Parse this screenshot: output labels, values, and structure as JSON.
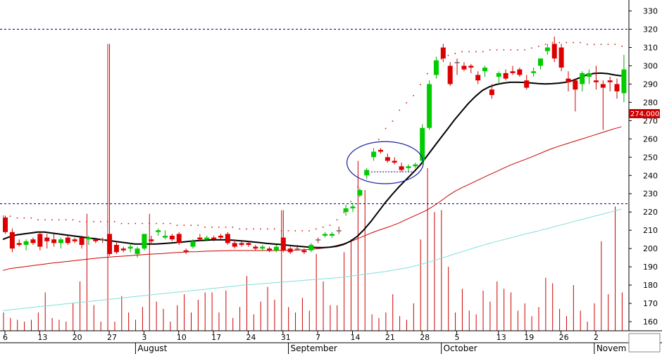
{
  "chart_data": {
    "type": "candlestick",
    "title": "",
    "xlabel": "",
    "ylabel": "",
    "ylim": [
      155,
      336
    ],
    "yticks": [
      160,
      170,
      180,
      190,
      200,
      210,
      220,
      230,
      240,
      250,
      260,
      270,
      280,
      290,
      300,
      310,
      320,
      330
    ],
    "price_tag": {
      "label": "274.000",
      "value": 274,
      "color": "#cc0000"
    },
    "resistance_lines": [
      320,
      224.5
    ],
    "x_day_labels": [
      {
        "label": "6",
        "i": 0
      },
      {
        "label": "13",
        "i": 5
      },
      {
        "label": "20",
        "i": 10
      },
      {
        "label": "27",
        "i": 15
      },
      {
        "label": "3",
        "i": 20
      },
      {
        "label": "10",
        "i": 25
      },
      {
        "label": "17",
        "i": 30
      },
      {
        "label": "24",
        "i": 35
      },
      {
        "label": "31",
        "i": 40
      },
      {
        "label": "7",
        "i": 45
      },
      {
        "label": "14",
        "i": 50
      },
      {
        "label": "21",
        "i": 55
      },
      {
        "label": "28",
        "i": 60
      },
      {
        "label": "5",
        "i": 65
      },
      {
        "label": "13",
        "i": 71
      },
      {
        "label": "19",
        "i": 75
      },
      {
        "label": "26",
        "i": 80
      },
      {
        "label": "2",
        "i": 85
      }
    ],
    "x_month_labels": [
      {
        "label": "August",
        "i": 20
      },
      {
        "label": "September",
        "i": 42
      },
      {
        "label": "October",
        "i": 64
      },
      {
        "label": "Novem",
        "i": 86
      }
    ],
    "candles": [
      [
        217,
        218,
        208,
        209
      ],
      [
        209,
        211,
        198,
        200
      ],
      [
        203,
        205,
        201,
        202
      ],
      [
        202,
        205,
        199,
        204
      ],
      [
        205,
        206,
        202,
        203
      ],
      [
        208,
        209,
        199,
        201
      ],
      [
        206,
        208,
        200,
        204
      ],
      [
        205,
        208,
        201,
        203
      ],
      [
        203,
        206,
        200,
        205
      ],
      [
        206,
        207,
        202,
        203
      ],
      [
        205,
        206,
        203,
        204
      ],
      [
        206,
        207,
        200,
        202
      ],
      [
        205,
        207,
        202,
        206
      ],
      [
        205,
        206,
        203,
        204
      ],
      [
        205,
        206,
        203,
        205
      ],
      [
        208,
        312,
        196,
        197
      ],
      [
        202,
        204,
        197,
        198
      ],
      [
        200,
        201,
        198,
        199
      ],
      [
        200,
        203,
        198,
        201
      ],
      [
        197,
        201,
        195,
        200
      ],
      [
        200,
        208,
        199,
        208
      ],
      [
        205,
        207,
        202,
        204
      ],
      [
        209,
        211,
        207,
        210
      ],
      [
        206,
        210,
        205,
        207
      ],
      [
        207,
        208,
        204,
        205
      ],
      [
        208,
        209,
        202,
        203
      ],
      [
        199,
        200,
        197,
        198
      ],
      [
        201,
        205,
        200,
        204
      ],
      [
        206,
        208,
        204,
        205
      ],
      [
        205,
        207,
        204,
        206
      ],
      [
        206,
        207,
        204,
        205
      ],
      [
        207,
        208,
        205,
        206
      ],
      [
        208,
        209,
        202,
        203
      ],
      [
        203,
        205,
        200,
        201
      ],
      [
        203,
        204,
        201,
        202
      ],
      [
        203,
        204,
        201,
        202
      ],
      [
        201,
        202,
        199,
        200
      ],
      [
        200,
        202,
        199,
        201
      ],
      [
        200,
        201,
        198,
        199
      ],
      [
        199,
        202,
        198,
        201
      ],
      [
        206,
        221,
        198,
        199
      ],
      [
        200,
        201,
        197,
        198
      ],
      [
        200,
        202,
        199,
        200
      ],
      [
        199,
        200,
        197,
        198
      ],
      [
        199,
        203,
        198,
        202
      ],
      [
        205,
        206,
        203,
        205
      ],
      [
        207,
        209,
        206,
        208
      ],
      [
        207,
        209,
        206,
        208
      ],
      [
        210,
        212,
        208,
        210
      ],
      [
        220,
        224,
        218,
        222
      ],
      [
        222,
        225,
        220,
        223
      ],
      [
        229,
        233,
        228,
        232
      ],
      [
        240,
        244,
        238,
        243
      ],
      [
        250,
        255,
        248,
        253
      ],
      [
        254,
        255,
        252,
        253
      ],
      [
        250,
        252,
        247,
        248
      ],
      [
        248,
        250,
        246,
        247
      ],
      [
        245,
        247,
        242,
        243
      ],
      [
        244,
        246,
        242,
        245
      ],
      [
        245,
        247,
        244,
        246
      ],
      [
        248,
        268,
        246,
        266
      ],
      [
        266,
        292,
        265,
        290
      ],
      [
        295,
        305,
        293,
        303
      ],
      [
        310,
        312,
        302,
        304
      ],
      [
        300,
        302,
        289,
        290
      ],
      [
        302,
        304,
        295,
        302
      ],
      [
        300,
        302,
        297,
        298
      ],
      [
        300,
        301,
        296,
        299
      ],
      [
        295,
        297,
        290,
        292
      ],
      [
        297,
        300,
        294,
        299
      ],
      [
        287,
        290,
        282,
        284
      ],
      [
        294,
        297,
        290,
        296
      ],
      [
        296,
        298,
        292,
        293
      ],
      [
        297,
        300,
        295,
        296
      ],
      [
        298,
        299,
        294,
        295
      ],
      [
        292,
        295,
        287,
        288
      ],
      [
        296,
        299,
        294,
        297
      ],
      [
        300,
        304,
        298,
        304
      ],
      [
        308,
        312,
        306,
        310
      ],
      [
        312,
        316,
        302,
        304
      ],
      [
        310,
        312,
        297,
        299
      ],
      [
        293,
        297,
        286,
        291
      ],
      [
        292,
        293,
        275,
        287
      ],
      [
        290,
        297,
        286,
        296
      ],
      [
        294,
        298,
        290,
        296
      ],
      [
        292,
        300,
        287,
        291
      ],
      [
        290,
        292,
        265,
        288
      ],
      [
        292,
        294,
        286,
        291
      ],
      [
        290,
        293,
        282,
        286
      ],
      [
        285,
        306,
        280,
        298
      ]
    ],
    "candle_color_hint": {
      "up": "#00cc00",
      "down": "#dd0000",
      "doji": "#666666"
    },
    "volume": [
      165,
      162,
      161,
      160,
      161,
      165,
      176,
      162,
      161,
      160,
      170,
      182,
      219,
      169,
      160,
      312,
      160,
      174,
      165,
      161,
      168,
      219,
      171,
      167,
      160,
      169,
      175,
      165,
      172,
      176,
      176,
      165,
      177,
      162,
      168,
      185,
      164,
      171,
      179,
      172,
      221,
      168,
      165,
      173,
      166,
      197,
      182,
      169,
      169,
      198,
      205,
      248,
      232,
      164,
      162,
      165,
      175,
      163,
      161,
      170,
      205,
      244,
      220,
      221,
      190,
      165,
      178,
      166,
      164,
      177,
      171,
      182,
      178,
      176,
      166,
      170,
      163,
      168,
      184,
      181,
      167,
      163,
      180,
      166,
      160,
      170,
      204,
      175,
      223,
      176
    ],
    "ma_black": [
      205,
      206.5,
      207.5,
      208,
      208.5,
      209,
      209,
      208.5,
      208,
      207.5,
      207,
      206.5,
      206,
      205.5,
      205,
      204.5,
      204,
      203.5,
      203,
      202.5,
      202.5,
      202.5,
      202.5,
      202.7,
      203,
      203.3,
      203.6,
      204,
      204.3,
      204.5,
      204.7,
      204.8,
      204.8,
      204.6,
      204.3,
      204,
      203.6,
      203.2,
      202.8,
      202.5,
      202.2,
      201.8,
      201.4,
      201.1,
      200.8,
      200.6,
      200.5,
      200.7,
      201.2,
      202.2,
      204,
      206.7,
      210.5,
      215,
      220,
      225,
      229.5,
      233.8,
      237.7,
      241.4,
      245.5,
      250.5,
      255.5,
      260.5,
      265.5,
      270.5,
      275,
      279.5,
      283.3,
      286.5,
      288.5,
      289.8,
      290.5,
      291,
      291,
      290.9,
      290.6,
      290.3,
      290.1,
      290.2,
      290.5,
      291,
      292,
      293.5,
      295,
      295.8,
      296,
      295.7,
      295,
      294.5
    ],
    "ma_red": [
      188,
      189,
      189.5,
      190,
      190.5,
      191,
      191.5,
      192,
      192.4,
      192.8,
      193.2,
      193.7,
      194.1,
      194.5,
      194.9,
      195.2,
      195.5,
      195.8,
      196,
      196.3,
      196.6,
      196.9,
      197.1,
      197.3,
      197.6,
      197.8,
      198,
      198.2,
      198.3,
      198.5,
      198.6,
      198.7,
      198.8,
      198.9,
      198.9,
      198.9,
      198.9,
      198.9,
      198.9,
      198.9,
      199,
      199,
      199.1,
      199.3,
      199.5,
      199.8,
      200.2,
      200.8,
      201.6,
      202.6,
      203.8,
      205.3,
      206.9,
      208.5,
      209.9,
      211.2,
      212.5,
      214,
      215.8,
      217.5,
      219.2,
      221,
      223.3,
      226,
      228.8,
      231.2,
      233.2,
      235,
      236.8,
      238.6,
      240.4,
      242.1,
      243.9,
      245.6,
      247.1,
      248.5,
      250,
      251.6,
      253.2,
      254.7,
      256,
      257.2,
      258.4,
      259.6,
      260.8,
      262,
      263.2,
      264.4,
      265.6,
      266.6
    ],
    "ma_cyan": [
      166,
      166.4,
      166.9,
      167.3,
      167.7,
      168.1,
      168.5,
      168.9,
      169.3,
      169.7,
      170.1,
      170.5,
      170.9,
      171.3,
      171.7,
      172.1,
      172.5,
      172.9,
      173.3,
      173.7,
      174.1,
      174.5,
      174.9,
      175.3,
      175.7,
      176.1,
      176.5,
      176.9,
      177.3,
      177.7,
      178.1,
      178.5,
      178.9,
      179.3,
      179.7,
      180.1,
      180.4,
      180.7,
      181,
      181.3,
      181.6,
      181.9,
      182.2,
      182.5,
      182.8,
      183.1,
      183.4,
      183.7,
      184,
      184.4,
      184.9,
      185.4,
      185.9,
      186.4,
      186.9,
      187.4,
      188,
      188.7,
      189.4,
      190.2,
      191.2,
      192.2,
      193.4,
      194.6,
      195.8,
      197,
      198.2,
      199.4,
      200.6,
      201.7,
      202.8,
      203.8,
      204.8,
      205.8,
      206.8,
      207.8,
      208.7,
      209.6,
      210.6,
      211.6,
      212.6,
      213.6,
      214.6,
      215.6,
      216.6,
      217.6,
      218.6,
      219.6,
      220.6,
      221.6
    ],
    "upper_band_dots": [
      218,
      218,
      217,
      217,
      217,
      216,
      216,
      216,
      216,
      216,
      216,
      215,
      215,
      215,
      215,
      215,
      215,
      214,
      214,
      214,
      214,
      214,
      214,
      214,
      214,
      213,
      213,
      213,
      213,
      212,
      212,
      212,
      212,
      212,
      211,
      211,
      211,
      211,
      211,
      211,
      210,
      210,
      210,
      210,
      210,
      211,
      212,
      213,
      216,
      220,
      226,
      234,
      243,
      252,
      260,
      266,
      270,
      276,
      280,
      284,
      290,
      296,
      302,
      304,
      306,
      307,
      308,
      308,
      308,
      308,
      309,
      309,
      309,
      309,
      309,
      309,
      310,
      311,
      312,
      313,
      313,
      313,
      313,
      313,
      312,
      312,
      312,
      312,
      312,
      311
    ],
    "ellipse_annotation": {
      "i_center": 55,
      "y_center": 247,
      "i_radius": 5.5,
      "y_radius": 11.5
    },
    "support_dash": {
      "i_from": 53,
      "i_to": 59,
      "y": 242
    }
  }
}
